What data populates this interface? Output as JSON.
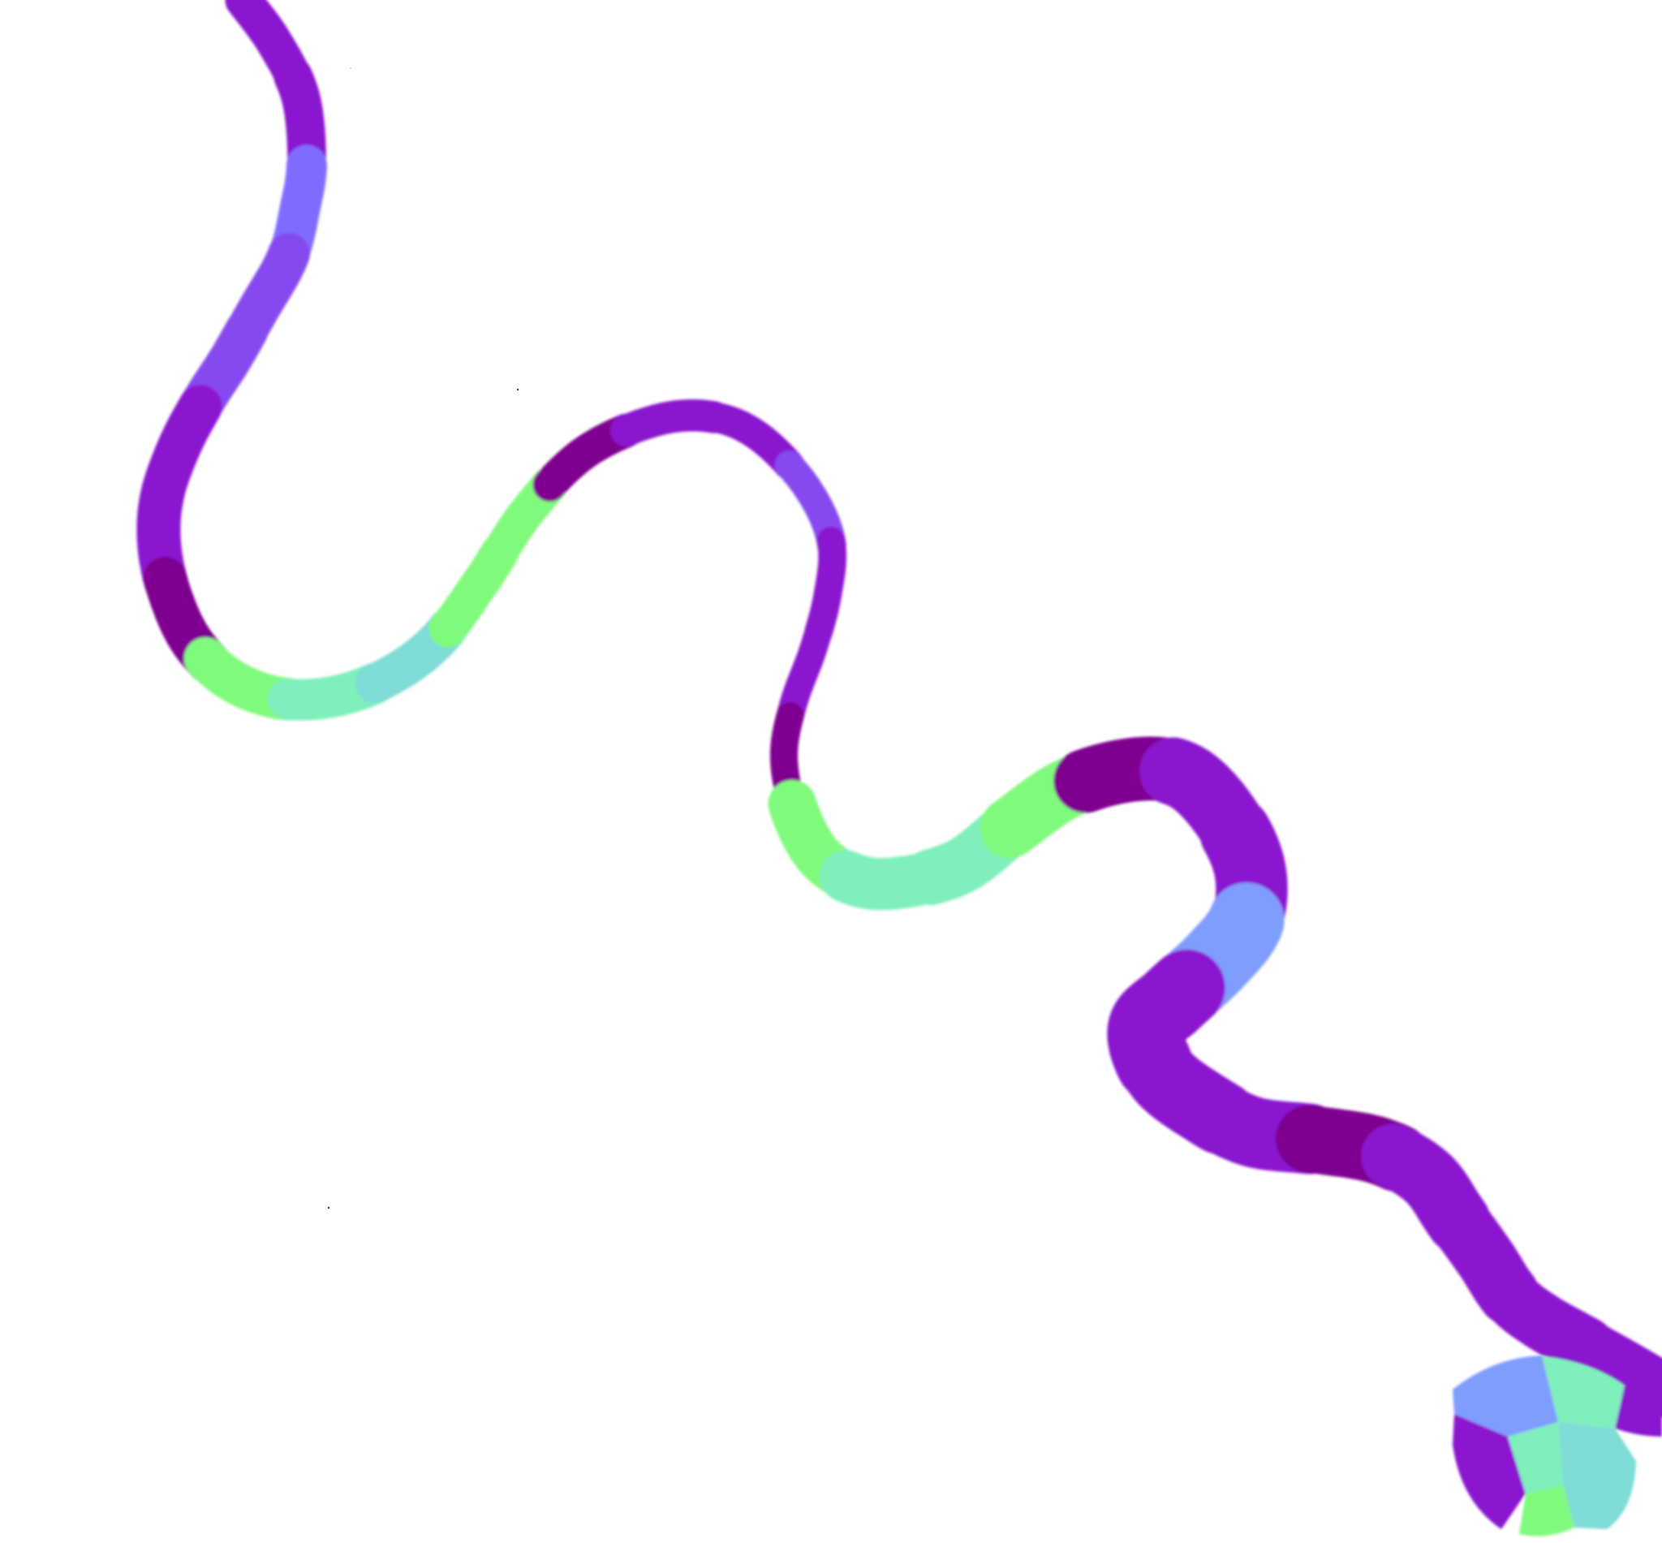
{
  "image": {
    "background": "#ffffff",
    "subject": "squiggly-ribbon",
    "palette": {
      "dark-purple": "#7f0090",
      "purple": "#8a17cf",
      "violet": "#8648ef",
      "periwinkle": "#7f6cff",
      "cornflower": "#7f9cff",
      "turquoise": "#7fdcd6",
      "aquamarine": "#7fefbc",
      "mint-green": "#80fa7c"
    },
    "segment_colors": [
      "purple",
      "purple",
      "periwinkle",
      "violet",
      "violet",
      "purple",
      "purple",
      "dark-purple",
      "mint-green",
      "aquamarine",
      "turquoise",
      "mint-green",
      "mint-green",
      "dark-purple",
      "purple",
      "purple",
      "violet",
      "purple",
      "purple",
      "dark-purple",
      "mint-green",
      "aquamarine",
      "aquamarine",
      "mint-green",
      "dark-purple",
      "purple",
      "purple",
      "cornflower",
      "purple",
      "purple",
      "purple",
      "dark-purple",
      "purple",
      "purple",
      "purple",
      "purple"
    ],
    "blob_colors": [
      "cornflower",
      "aquamarine",
      "purple",
      "turquoise",
      "mint-green",
      "aquamarine",
      "purple"
    ]
  }
}
